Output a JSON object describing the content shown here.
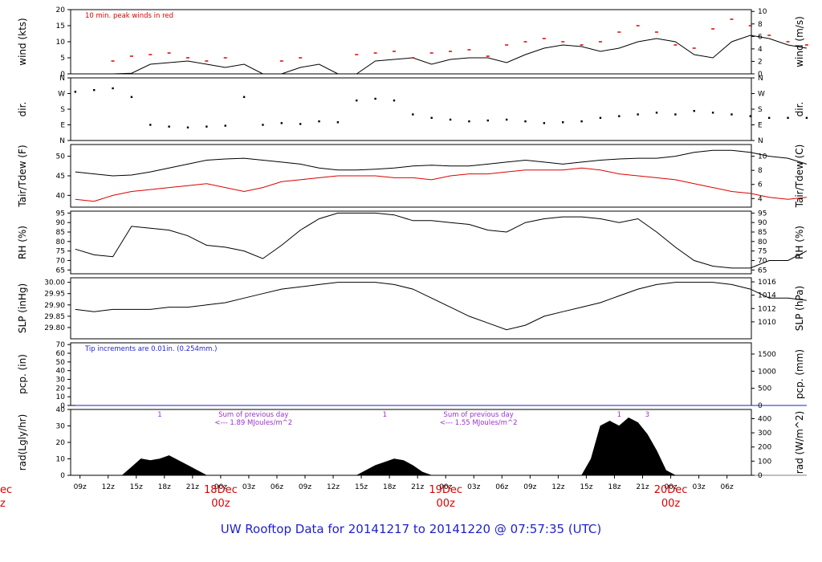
{
  "footer": {
    "prefix": "UW Rooftop Data for",
    "start": "20141217",
    "to": "to",
    "end": "20141220",
    "at": "@ 07:57:35",
    "tz": "(UTC)"
  },
  "colors": {
    "frame": "#000000",
    "series_main": "#000000",
    "series_red": "#dd0000",
    "note_red": "#dd0000",
    "note_blue": "#1f1fd0",
    "note_purple": "#9933cc",
    "date_red": "#dd0000",
    "title_blue": "#1f1fd0"
  },
  "chart_data": [
    {
      "name": "wind",
      "type": "line",
      "ylabel_left": "wind (kts)",
      "ylabel_right": "wind (m/s)",
      "ylim": [
        0,
        20
      ],
      "yticks_left": [
        "0",
        "5",
        "10",
        "15",
        "20"
      ],
      "yticks_left_values": [
        0,
        5,
        10,
        15,
        20
      ],
      "yticks_right": [
        "0",
        "2",
        "4",
        "6",
        "8",
        "10"
      ],
      "yticks_right_values": [
        0,
        3.89,
        7.78,
        11.66,
        15.55,
        19.44
      ],
      "annotation": "10 min. peak winds in red",
      "series": [
        {
          "name": "mean wind",
          "x": [
            0,
            2,
            4,
            6,
            8,
            10,
            12,
            14,
            16,
            18,
            20,
            22,
            24,
            26,
            28,
            30,
            32,
            34,
            36,
            38,
            40,
            42,
            44,
            46,
            48,
            50,
            52,
            54,
            56,
            58,
            60,
            62,
            64,
            66,
            68,
            70,
            72,
            74,
            76,
            78
          ],
          "y": [
            0,
            0,
            0,
            0.2,
            3,
            3.5,
            4,
            3,
            2,
            3,
            0,
            0,
            2,
            3,
            0,
            0,
            4,
            4.5,
            5,
            3,
            4.5,
            5,
            5,
            3.5,
            6,
            8,
            9,
            8.5,
            7,
            8,
            10,
            11,
            10,
            6,
            5,
            10,
            12,
            11,
            9,
            8
          ]
        },
        {
          "name": "10 min. peak winds",
          "x": [
            4,
            6,
            8,
            10,
            12,
            14,
            16,
            18,
            20,
            22,
            24,
            26,
            28,
            30,
            32,
            34,
            36,
            38,
            40,
            42,
            44,
            46,
            48,
            50,
            52,
            54,
            56,
            58,
            60,
            62,
            64,
            66,
            68,
            70,
            72,
            74,
            76,
            78
          ],
          "y": [
            4,
            5.5,
            6,
            6.5,
            5,
            4,
            5,
            0,
            0,
            4,
            5,
            0,
            0,
            6,
            6.5,
            7,
            5,
            6.5,
            7,
            7.5,
            5.5,
            9,
            10,
            11,
            10,
            9,
            10,
            13,
            15,
            13,
            9,
            8,
            14,
            17,
            15,
            12,
            10,
            9
          ]
        }
      ]
    },
    {
      "name": "dir",
      "type": "scatter",
      "ylabel_left": "dir.",
      "ylabel_right": "dir.",
      "ylim": [
        0,
        360
      ],
      "yticks_left": [
        "N",
        "E",
        "S",
        "W",
        "N"
      ],
      "yticks_left_values": [
        0,
        90,
        180,
        270,
        360
      ],
      "yticks_right": [
        "N",
        "E",
        "S",
        "W",
        "N"
      ],
      "yticks_right_values": [
        0,
        90,
        180,
        270,
        360
      ],
      "series": [
        {
          "name": "direction",
          "x": [
            0,
            2,
            4,
            6,
            8,
            10,
            12,
            14,
            16,
            18,
            20,
            22,
            24,
            26,
            28,
            30,
            32,
            34,
            36,
            38,
            40,
            42,
            44,
            46,
            48,
            50,
            52,
            54,
            56,
            58,
            60,
            62,
            64,
            66,
            68,
            70,
            72,
            74,
            76,
            78
          ],
          "y": [
            280,
            290,
            300,
            250,
            90,
            80,
            75,
            80,
            85,
            250,
            90,
            100,
            95,
            110,
            105,
            230,
            240,
            230,
            150,
            130,
            120,
            110,
            115,
            120,
            110,
            100,
            105,
            110,
            130,
            140,
            150,
            160,
            150,
            170,
            160,
            150,
            140,
            130,
            130,
            130
          ]
        }
      ]
    },
    {
      "name": "temp",
      "type": "line",
      "ylabel_left": "Tair/Tdew (F)",
      "ylabel_right": "Tair/Tdew (C)",
      "ylim": [
        37,
        53
      ],
      "yticks_left": [
        "40",
        "45",
        "50"
      ],
      "yticks_left_values": [
        40,
        45,
        50
      ],
      "yticks_right": [
        "4",
        "6",
        "8",
        "10"
      ],
      "yticks_right_values": [
        39.2,
        42.8,
        46.4,
        50
      ],
      "series": [
        {
          "name": "Tair",
          "x": [
            0,
            2,
            4,
            6,
            8,
            10,
            12,
            14,
            16,
            18,
            20,
            22,
            24,
            26,
            28,
            30,
            32,
            34,
            36,
            38,
            40,
            42,
            44,
            46,
            48,
            50,
            52,
            54,
            56,
            58,
            60,
            62,
            64,
            66,
            68,
            70,
            72,
            74,
            76,
            78
          ],
          "y": [
            46,
            45.5,
            45,
            45.2,
            46,
            47,
            48,
            49,
            49.3,
            49.5,
            49,
            48.5,
            48,
            47,
            46.5,
            46.5,
            46.7,
            47,
            47.5,
            47.7,
            47.5,
            47.5,
            48,
            48.5,
            49,
            48.5,
            48,
            48.5,
            49,
            49.3,
            49.5,
            49.5,
            50,
            51,
            51.5,
            51.5,
            51,
            50,
            49.5,
            48
          ]
        },
        {
          "name": "Tdew",
          "x": [
            0,
            2,
            4,
            6,
            8,
            10,
            12,
            14,
            16,
            18,
            20,
            22,
            24,
            26,
            28,
            30,
            32,
            34,
            36,
            38,
            40,
            42,
            44,
            46,
            48,
            50,
            52,
            54,
            56,
            58,
            60,
            62,
            64,
            66,
            68,
            70,
            72,
            74,
            76,
            78
          ],
          "y": [
            39,
            38.5,
            40,
            41,
            41.5,
            42,
            42.5,
            43,
            42,
            41,
            42,
            43.5,
            44,
            44.5,
            45,
            45,
            45,
            44.5,
            44.5,
            44,
            45,
            45.5,
            45.5,
            46,
            46.5,
            46.5,
            46.5,
            47,
            46.5,
            45.5,
            45,
            44.5,
            44,
            43,
            42,
            41,
            40.5,
            39.5,
            39,
            39.5
          ]
        }
      ]
    },
    {
      "name": "rh",
      "type": "line",
      "ylabel_left": "RH (%)",
      "ylabel_right": "RH (%)",
      "ylim": [
        63,
        96
      ],
      "yticks_left": [
        "65",
        "70",
        "75",
        "80",
        "85",
        "90",
        "95"
      ],
      "yticks_left_values": [
        65,
        70,
        75,
        80,
        85,
        90,
        95
      ],
      "yticks_right": [
        "65",
        "70",
        "75",
        "80",
        "85",
        "90",
        "95"
      ],
      "yticks_right_values": [
        65,
        70,
        75,
        80,
        85,
        90,
        95
      ],
      "series": [
        {
          "name": "RH",
          "x": [
            0,
            2,
            4,
            6,
            8,
            10,
            12,
            14,
            16,
            18,
            20,
            22,
            24,
            26,
            28,
            30,
            32,
            34,
            36,
            38,
            40,
            42,
            44,
            46,
            48,
            50,
            52,
            54,
            56,
            58,
            60,
            62,
            64,
            66,
            68,
            70,
            72,
            74,
            76,
            78
          ],
          "y": [
            76,
            73,
            72,
            88,
            87,
            86,
            83,
            78,
            77,
            75,
            71,
            78,
            86,
            92,
            95,
            95,
            95,
            94,
            91,
            91,
            90,
            89,
            86,
            85,
            90,
            92,
            93,
            93,
            92,
            90,
            92,
            85,
            77,
            70,
            67,
            66,
            66,
            70,
            70,
            75
          ]
        }
      ]
    },
    {
      "name": "slp",
      "type": "line",
      "ylabel_left": "SLP (inHg)",
      "ylabel_right": "SLP (hPa)",
      "ylim": [
        29.75,
        30.02
      ],
      "yticks_left": [
        "29.80",
        "29.85",
        "29.90",
        "29.95",
        "30.00"
      ],
      "yticks_left_values": [
        29.8,
        29.85,
        29.9,
        29.95,
        30.0
      ],
      "yticks_right": [
        "1010",
        "1012",
        "1014",
        "1016"
      ],
      "yticks_right_values": [
        29.825,
        29.884,
        29.943,
        30.002
      ],
      "series": [
        {
          "name": "SLP",
          "x": [
            0,
            2,
            4,
            6,
            8,
            10,
            12,
            14,
            16,
            18,
            20,
            22,
            24,
            26,
            28,
            30,
            32,
            34,
            36,
            38,
            40,
            42,
            44,
            46,
            48,
            50,
            52,
            54,
            56,
            58,
            60,
            62,
            64,
            66,
            68,
            70,
            72,
            74,
            76,
            78
          ],
          "y": [
            29.88,
            29.87,
            29.88,
            29.88,
            29.88,
            29.89,
            29.89,
            29.9,
            29.91,
            29.93,
            29.95,
            29.97,
            29.98,
            29.99,
            30.0,
            30.0,
            30.0,
            29.99,
            29.97,
            29.93,
            29.89,
            29.85,
            29.82,
            29.79,
            29.81,
            29.85,
            29.87,
            29.89,
            29.91,
            29.94,
            29.97,
            29.99,
            30.0,
            30.0,
            30.0,
            29.99,
            29.97,
            29.93,
            29.93,
            29.92
          ]
        }
      ]
    },
    {
      "name": "pcp",
      "type": "line",
      "ylabel_left": "pcp. (in)",
      "ylabel_right": "pcp. (mm)",
      "ylim": [
        0,
        72
      ],
      "yticks_left": [
        "0",
        "10",
        "20",
        "30",
        "40",
        "50",
        "60",
        "70"
      ],
      "yticks_left_values": [
        0,
        10,
        20,
        30,
        40,
        50,
        60,
        70
      ],
      "yticks_right": [
        "0",
        "500",
        "1000",
        "1500"
      ],
      "yticks_right_values": [
        0,
        19.7,
        39.4,
        59.1
      ],
      "annotation": "Tip increments are 0.01in. (0.254mm.)",
      "series": [
        {
          "name": "precip",
          "x": [
            0,
            78
          ],
          "y": [
            0,
            0
          ]
        }
      ]
    },
    {
      "name": "rad",
      "type": "area",
      "ylabel_left": "rad(Lgly/hr)",
      "ylabel_right": "rad (W/m^2)",
      "ylim": [
        0,
        40
      ],
      "yticks_left": [
        "0",
        "10",
        "20",
        "30",
        "40"
      ],
      "yticks_left_values": [
        0,
        10,
        20,
        30,
        40
      ],
      "yticks_right": [
        "0",
        "100",
        "200",
        "300",
        "400"
      ],
      "yticks_right_values": [
        0,
        8.6,
        17.2,
        25.8,
        34.4
      ],
      "annotations": [
        {
          "text": "1",
          "x": 9
        },
        {
          "text": "Sum of previous day",
          "x": 19
        },
        {
          "text": "<--- 1.89 MJoules/m^2",
          "x": 19
        },
        {
          "text": "1",
          "x": 33
        },
        {
          "text": "Sum of previous day",
          "x": 43
        },
        {
          "text": "<--- 1.55 MJoules/m^2",
          "x": 43
        },
        {
          "text": "1",
          "x": 58
        },
        {
          "text": "3",
          "x": 61
        }
      ],
      "series": [
        {
          "name": "radiation",
          "x": [
            0,
            5,
            6,
            7,
            8,
            9,
            10,
            11,
            12,
            13,
            14,
            30,
            31,
            32,
            33,
            34,
            35,
            36,
            37,
            38,
            54,
            55,
            56,
            57,
            58,
            59,
            60,
            61,
            62,
            63,
            64,
            78
          ],
          "y": [
            0,
            0,
            5,
            10,
            9,
            10,
            12,
            9,
            6,
            3,
            0,
            0,
            3,
            6,
            8,
            10,
            9,
            6,
            2,
            0,
            0,
            10,
            30,
            33,
            30,
            35,
            32,
            25,
            15,
            3,
            0,
            0
          ]
        }
      ]
    }
  ],
  "xaxis": {
    "ticks": [
      {
        "label": "09z",
        "x": 0.5
      },
      {
        "label": "12z",
        "x": 3.5
      },
      {
        "label": "15z",
        "x": 6.5
      },
      {
        "label": "18z",
        "x": 9.5
      },
      {
        "label": "21z",
        "x": 12.5
      },
      {
        "label": "00z",
        "x": 15.5
      },
      {
        "label": "03z",
        "x": 18.5
      },
      {
        "label": "06z",
        "x": 21.5
      },
      {
        "label": "09z",
        "x": 24.5
      },
      {
        "label": "12z",
        "x": 27.5
      },
      {
        "label": "15z",
        "x": 30.5
      },
      {
        "label": "18z",
        "x": 33.5
      },
      {
        "label": "21z",
        "x": 36.5
      },
      {
        "label": "00z",
        "x": 39.5
      },
      {
        "label": "03z",
        "x": 42.5
      },
      {
        "label": "06z",
        "x": 45.5
      },
      {
        "label": "09z",
        "x": 48.5
      },
      {
        "label": "12z",
        "x": 51.5
      },
      {
        "label": "15z",
        "x": 54.5
      },
      {
        "label": "18z",
        "x": 57.5
      },
      {
        "label": "21z",
        "x": 60.5
      },
      {
        "label": "00z",
        "x": 63.5
      },
      {
        "label": "03z",
        "x": 66.5
      },
      {
        "label": "06z",
        "x": 69.5
      }
    ],
    "dates": [
      {
        "day": "18Dec",
        "hour": "00z",
        "x": 15.5
      },
      {
        "day": "19Dec",
        "hour": "00z",
        "x": 39.5
      },
      {
        "day": "20Dec",
        "hour": "00z",
        "x": 63.5
      }
    ],
    "left_cut_day": "ec",
    "left_cut_hour": "z"
  }
}
